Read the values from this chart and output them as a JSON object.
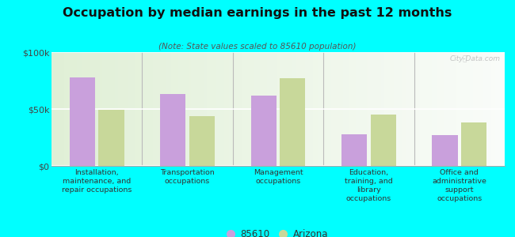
{
  "title": "Occupation by median earnings in the past 12 months",
  "subtitle": "(Note: State values scaled to 85610 population)",
  "categories": [
    "Installation,\nmaintenance, and\nrepair occupations",
    "Transportation\noccupations",
    "Management\noccupations",
    "Education,\ntraining, and\nlibrary\noccupations",
    "Office and\nadministrative\nsupport\noccupations"
  ],
  "values_85610": [
    78000,
    63000,
    62000,
    28000,
    27000
  ],
  "values_arizona": [
    49000,
    44000,
    77000,
    45000,
    38000
  ],
  "color_85610": "#c9a0dc",
  "color_arizona": "#c8d89a",
  "background_fig": "#00ffff",
  "ylim": [
    0,
    100000
  ],
  "ytick_labels": [
    "$0",
    "$50k",
    "$100k"
  ],
  "legend_label_85610": "85610",
  "legend_label_arizona": "Arizona",
  "watermark": "City-Data.com"
}
